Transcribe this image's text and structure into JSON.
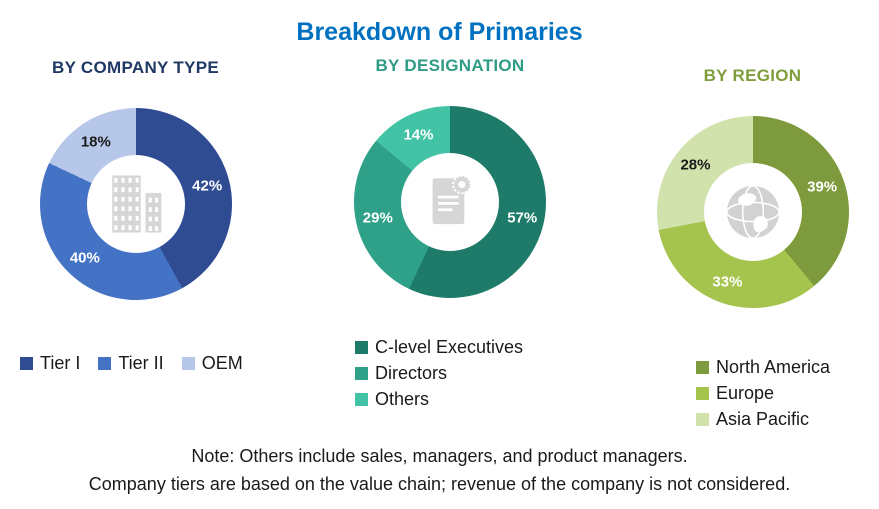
{
  "title": "Breakdown of Primaries",
  "title_color": "#0070C0",
  "chart_data": [
    {
      "type": "pie",
      "title": "BY COMPANY TYPE",
      "heading_color": "#1F3864",
      "categories": [
        "Tier I",
        "Tier II",
        "OEM"
      ],
      "values": [
        42,
        40,
        18
      ],
      "colors": [
        "#2F4C93",
        "#4473C5",
        "#B7C7E9"
      ],
      "label_colors": [
        "#FFFFFF",
        "#FFFFFF",
        "#1A1A1A"
      ],
      "labels": [
        "42%",
        "40%",
        "18%"
      ],
      "legend_position": "bottom-horizontal",
      "center_icon": "building-icon",
      "donut": true
    },
    {
      "type": "pie",
      "title": "BY DESIGNATION",
      "heading_color": "#2E9C85",
      "categories": [
        "C-level Executives",
        "Directors",
        "Others"
      ],
      "values": [
        57,
        29,
        14
      ],
      "colors": [
        "#1E7B69",
        "#2FA189",
        "#43C3A5"
      ],
      "label_colors": [
        "#FFFFFF",
        "#FFFFFF",
        "#FFFFFF"
      ],
      "labels": [
        "57%",
        "29%",
        "14%"
      ],
      "legend_position": "bottom-vertical",
      "center_icon": "certificate-icon",
      "donut": true
    },
    {
      "type": "pie",
      "title": "BY REGION",
      "heading_color": "#7F9D3B",
      "categories": [
        "North America",
        "Europe",
        "Asia Pacific"
      ],
      "values": [
        39,
        33,
        28
      ],
      "colors": [
        "#7D9A3C",
        "#A5C44D",
        "#D2E2AC"
      ],
      "label_colors": [
        "#FFFFFF",
        "#FFFFFF",
        "#1A1A1A"
      ],
      "labels": [
        "39%",
        "33%",
        "28%"
      ],
      "legend_position": "bottom-vertical",
      "center_icon": "globe-icon",
      "donut": true
    }
  ],
  "notes": [
    "Note: Others include sales, managers, and product managers.",
    "Company tiers are based on the value chain; revenue of the company is not considered."
  ]
}
